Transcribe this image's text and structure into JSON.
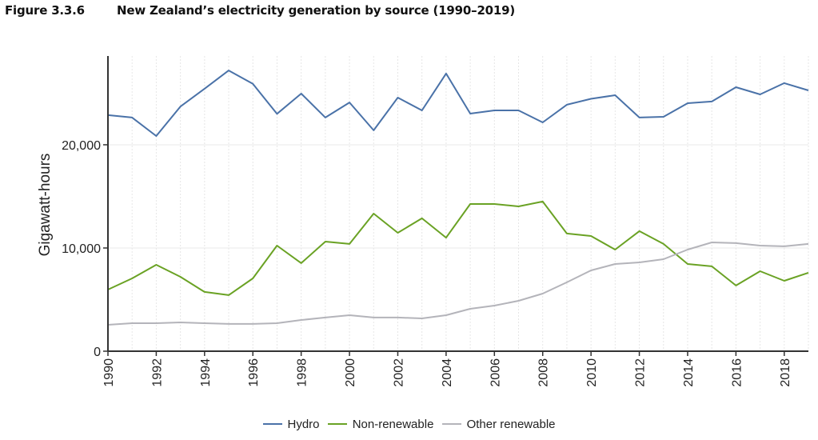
{
  "figure": {
    "number": "Figure 3.3.6",
    "title": "New Zealand’s electricity generation by source (1990–2019)"
  },
  "chart_data": {
    "type": "line",
    "title": "New Zealand’s electricity generation by source (1990–2019)",
    "xlabel": "",
    "ylabel": "Gigawatt-hours",
    "x": [
      1990,
      1991,
      1992,
      1993,
      1994,
      1995,
      1996,
      1997,
      1998,
      1999,
      2000,
      2001,
      2002,
      2003,
      2004,
      2005,
      2006,
      2007,
      2008,
      2009,
      2010,
      2011,
      2012,
      2013,
      2014,
      2015,
      2016,
      2017,
      2018,
      2019
    ],
    "xlim": [
      1990,
      2019
    ],
    "ylim": [
      0,
      28600
    ],
    "x_tick_labels": [
      "1990",
      "1992",
      "1994",
      "1996",
      "1998",
      "2000",
      "2002",
      "2004",
      "2006",
      "2008",
      "2010",
      "2012",
      "2014",
      "2016",
      "2018"
    ],
    "y_ticks": [
      0,
      10000,
      20000
    ],
    "y_tick_labels": [
      "0",
      "10,000",
      "20,000"
    ],
    "grid": true,
    "legend_position": "bottom-center",
    "series": [
      {
        "name": "Hydro",
        "color": "#4a72a8",
        "values": [
          22870,
          22640,
          20850,
          23700,
          25430,
          27200,
          25900,
          23000,
          24960,
          22640,
          24100,
          21400,
          24570,
          23330,
          26900,
          23020,
          23330,
          23330,
          22170,
          23880,
          24450,
          24800,
          22640,
          22710,
          24030,
          24190,
          25580,
          24880,
          25970,
          25270
        ]
      },
      {
        "name": "Non-renewable",
        "color": "#6aa224",
        "values": [
          5970,
          7050,
          8370,
          7210,
          5740,
          5430,
          7050,
          10230,
          8530,
          10620,
          10390,
          13330,
          11470,
          12870,
          11000,
          14260,
          14260,
          14030,
          14500,
          11400,
          11160,
          9840,
          11630,
          10390,
          8450,
          8220,
          6360,
          7750,
          6820,
          7600
        ]
      },
      {
        "name": "Other renewable",
        "color": "#b4b4ba",
        "values": [
          2560,
          2710,
          2710,
          2790,
          2710,
          2640,
          2640,
          2710,
          3020,
          3260,
          3490,
          3260,
          3260,
          3180,
          3490,
          4110,
          4420,
          4880,
          5580,
          6670,
          7830,
          8450,
          8600,
          8910,
          9840,
          10540,
          10470,
          10230,
          10160,
          10390
        ]
      }
    ]
  }
}
